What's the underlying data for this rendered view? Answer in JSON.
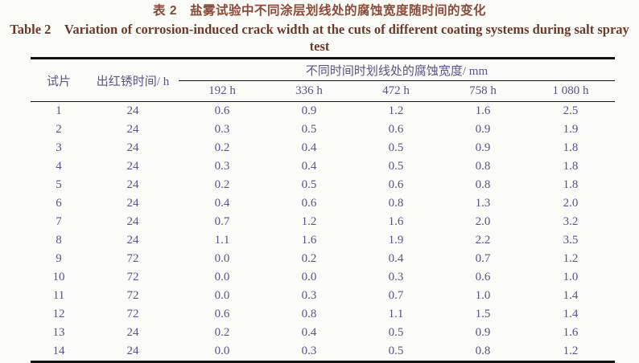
{
  "title": {
    "zh": "表 2　盐雾试验中不同涂层划线处的腐蚀宽度随时间的变化",
    "en": "Table 2　Variation of corrosion-induced crack width at the cuts of different coating systems during salt spray test"
  },
  "table": {
    "col1_header": "试片",
    "col2_header": "出红锈时间/ h",
    "spanner_header": "不同时间时划线处的腐蚀宽度/ mm",
    "time_headers": [
      "192 h",
      "336 h",
      "472 h",
      "758 h",
      "1 080 h"
    ],
    "rows": [
      {
        "specimen": "1",
        "rust_time": "24",
        "widths": [
          "0.6",
          "0.9",
          "1.2",
          "1.6",
          "2.5"
        ]
      },
      {
        "specimen": "2",
        "rust_time": "24",
        "widths": [
          "0.3",
          "0.5",
          "0.6",
          "0.9",
          "1.9"
        ]
      },
      {
        "specimen": "3",
        "rust_time": "24",
        "widths": [
          "0.2",
          "0.4",
          "0.5",
          "0.9",
          "1.8"
        ]
      },
      {
        "specimen": "4",
        "rust_time": "24",
        "widths": [
          "0.3",
          "0.4",
          "0.5",
          "0.8",
          "1.8"
        ]
      },
      {
        "specimen": "5",
        "rust_time": "24",
        "widths": [
          "0.2",
          "0.5",
          "0.6",
          "0.8",
          "1.8"
        ]
      },
      {
        "specimen": "6",
        "rust_time": "24",
        "widths": [
          "0.4",
          "0.6",
          "0.8",
          "1.3",
          "2.0"
        ]
      },
      {
        "specimen": "7",
        "rust_time": "24",
        "widths": [
          "0.7",
          "1.2",
          "1.6",
          "2.0",
          "3.2"
        ]
      },
      {
        "specimen": "8",
        "rust_time": "24",
        "widths": [
          "1.1",
          "1.6",
          "1.9",
          "2.2",
          "3.5"
        ]
      },
      {
        "specimen": "9",
        "rust_time": "72",
        "widths": [
          "0.0",
          "0.2",
          "0.4",
          "0.7",
          "1.2"
        ]
      },
      {
        "specimen": "10",
        "rust_time": "72",
        "widths": [
          "0.0",
          "0.0",
          "0.3",
          "0.6",
          "1.0"
        ]
      },
      {
        "specimen": "11",
        "rust_time": "72",
        "widths": [
          "0.0",
          "0.3",
          "0.7",
          "1.0",
          "1.4"
        ]
      },
      {
        "specimen": "12",
        "rust_time": "72",
        "widths": [
          "0.6",
          "0.8",
          "1.1",
          "1.5",
          "1.4"
        ]
      },
      {
        "specimen": "13",
        "rust_time": "24",
        "widths": [
          "0.2",
          "0.4",
          "0.5",
          "0.9",
          "1.6"
        ]
      },
      {
        "specimen": "14",
        "rust_time": "24",
        "widths": [
          "0.0",
          "0.3",
          "0.5",
          "0.8",
          "1.2"
        ]
      }
    ]
  },
  "colors": {
    "background": "#fbfbf8",
    "title_zh": "#8b4a37",
    "title_en": "#6b3a28",
    "table_text": "#5c518a",
    "rule": "#111111"
  }
}
